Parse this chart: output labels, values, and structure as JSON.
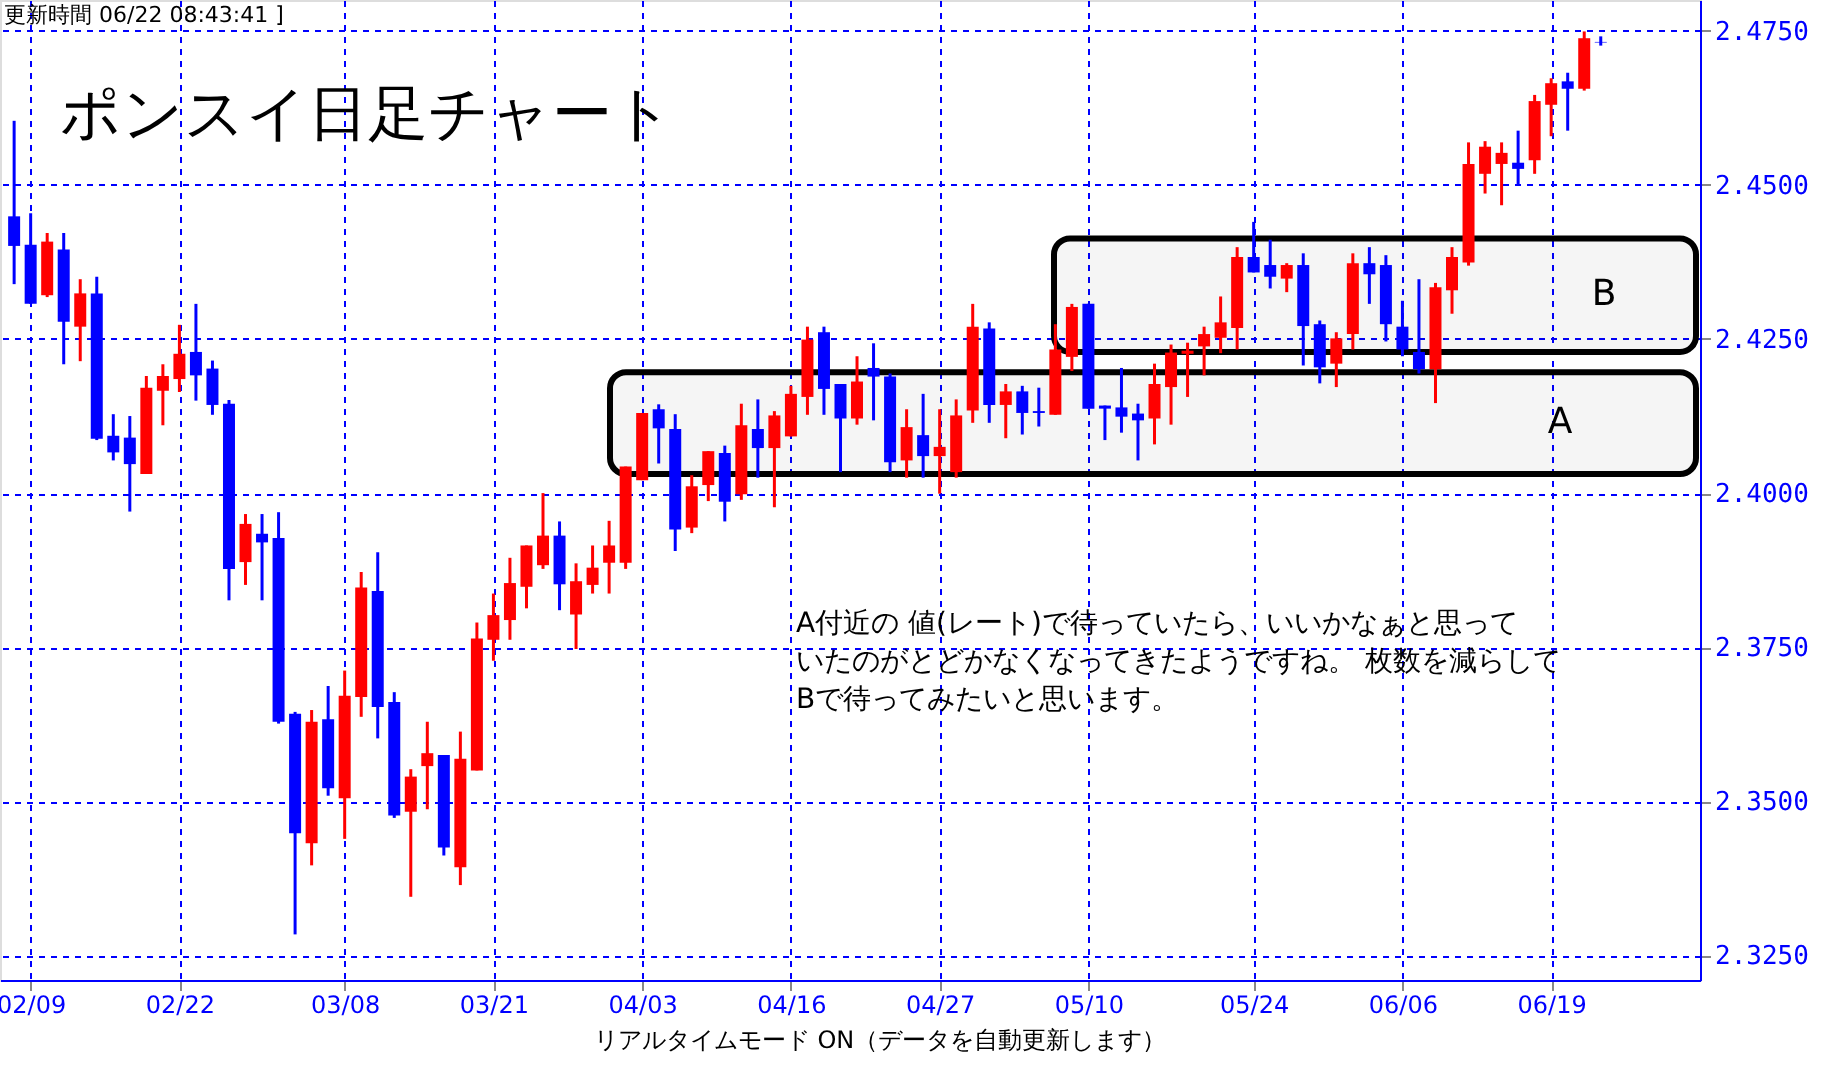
{
  "chart_data": {
    "type": "candlestick",
    "title": "ポンスイ日足チャート",
    "annotations": [
      "更新時間 06/22 08:43:41 ]",
      "A付近の 値(レート)で待っていたら、いいかなぁと思っていたのがとどかなくなってきたようですね。 枚数を減らしてBで待ってみたいと思います。",
      "リアルタイムモード ON（データを自動更新します）"
    ],
    "categories": [
      null,
      "02/09",
      null,
      null,
      null,
      null,
      null,
      null,
      null,
      null,
      "02/22",
      null,
      null,
      null,
      null,
      null,
      null,
      null,
      null,
      null,
      "03/08",
      null,
      null,
      null,
      null,
      null,
      null,
      null,
      null,
      "03/21",
      null,
      null,
      null,
      null,
      null,
      null,
      null,
      null,
      "04/03",
      null,
      null,
      null,
      null,
      null,
      null,
      null,
      null,
      "04/16",
      null,
      null,
      null,
      null,
      null,
      null,
      null,
      null,
      "04/27",
      null,
      null,
      null,
      null,
      null,
      null,
      null,
      null,
      "05/10",
      null,
      null,
      null,
      null,
      null,
      null,
      null,
      null,
      null,
      "05/24",
      null,
      null,
      null,
      null,
      null,
      null,
      null,
      null,
      "06/06",
      null,
      null,
      null,
      null,
      null,
      null,
      null,
      null,
      "06/19",
      null,
      null,
      null
    ],
    "ohlc": [
      [
        2.4449,
        2.4604,
        2.4339,
        2.4401
      ],
      [
        2.4403,
        2.4454,
        2.4307,
        2.4307
      ],
      [
        2.4321,
        2.4422,
        2.4318,
        2.4408
      ],
      [
        2.4395,
        2.4422,
        2.4209,
        2.4278
      ],
      [
        2.427,
        2.4347,
        2.4214,
        2.4324
      ],
      [
        2.4324,
        2.4351,
        2.4086,
        2.4088
      ],
      [
        2.4093,
        2.4128,
        2.4053,
        2.4066
      ],
      [
        2.409,
        2.4125,
        2.397,
        2.4047
      ],
      [
        2.4031,
        2.419,
        2.4031,
        2.4171
      ],
      [
        2.4166,
        2.4209,
        2.411,
        2.419
      ],
      [
        2.4185,
        2.4273,
        2.4164,
        2.4226
      ],
      [
        2.4229,
        2.4307,
        2.415,
        2.4191
      ],
      [
        2.4202,
        2.4215,
        2.4127,
        2.4143
      ],
      [
        2.4145,
        2.4151,
        2.3826,
        2.3877
      ],
      [
        2.3888,
        2.3966,
        2.3851,
        2.395
      ],
      [
        2.3934,
        2.3966,
        2.3826,
        2.392
      ],
      [
        2.3927,
        2.3969,
        2.3626,
        2.3629
      ],
      [
        2.3642,
        2.3645,
        2.3284,
        2.3448
      ],
      [
        2.3432,
        2.3648,
        2.3396,
        2.3629
      ],
      [
        2.3633,
        2.3687,
        2.3509,
        2.3521
      ],
      [
        2.3505,
        2.3712,
        2.3439,
        2.3671
      ],
      [
        2.3669,
        2.3872,
        2.3637,
        2.3847
      ],
      [
        2.3841,
        2.3904,
        2.3602,
        2.3653
      ],
      [
        2.3661,
        2.3677,
        2.3473,
        2.3477
      ],
      [
        2.3483,
        2.3552,
        2.3345,
        2.354
      ],
      [
        2.3557,
        2.3629,
        2.3487,
        2.3578
      ],
      [
        2.3575,
        2.3575,
        2.3412,
        2.3425
      ],
      [
        2.3393,
        2.3613,
        2.3364,
        2.3569
      ],
      [
        2.355,
        2.379,
        2.355,
        2.3764
      ],
      [
        2.3762,
        2.3837,
        2.3728,
        2.3802
      ],
      [
        2.3794,
        2.3895,
        2.3762,
        2.3854
      ],
      [
        2.3848,
        2.3915,
        2.3813,
        2.3915
      ],
      [
        2.3883,
        2.4,
        2.3877,
        2.3931
      ],
      [
        2.3931,
        2.3954,
        2.381,
        2.3852
      ],
      [
        2.3803,
        2.3886,
        2.3747,
        2.3857
      ],
      [
        2.3851,
        2.3915,
        2.3837,
        2.3879
      ],
      [
        2.3887,
        2.3955,
        2.3837,
        2.3915
      ],
      [
        2.3887,
        2.4043,
        2.3877,
        2.4043
      ],
      [
        2.4021,
        2.413,
        2.4021,
        2.413
      ],
      [
        2.4136,
        2.4144,
        2.4048,
        2.4105
      ],
      [
        2.4104,
        2.4128,
        2.3906,
        2.3941
      ],
      [
        2.3944,
        2.4029,
        2.3935,
        2.4011
      ],
      [
        2.4013,
        2.4068,
        2.3987,
        2.4068
      ],
      [
        2.4065,
        2.4077,
        2.3954,
        2.3986
      ],
      [
        2.3998,
        2.4145,
        2.3989,
        2.411
      ],
      [
        2.4104,
        2.4152,
        2.4025,
        2.4073
      ],
      [
        2.4073,
        2.4133,
        2.3977,
        2.4126
      ],
      [
        2.4092,
        2.4174,
        2.4092,
        2.4161
      ],
      [
        2.4156,
        2.427,
        2.4127,
        2.4249
      ],
      [
        2.4261,
        2.427,
        2.4127,
        2.4169
      ],
      [
        2.4177,
        2.4177,
        2.4034,
        2.4121
      ],
      [
        2.4121,
        2.4222,
        2.4111,
        2.4181
      ],
      [
        2.4203,
        2.4243,
        2.4118,
        2.4189
      ],
      [
        2.4189,
        2.4194,
        2.4034,
        2.405
      ],
      [
        2.4053,
        2.4136,
        2.4025,
        2.4107
      ],
      [
        2.4094,
        2.4161,
        2.4025,
        2.406
      ],
      [
        2.406,
        2.4136,
        2.3999,
        2.4075
      ],
      [
        2.4034,
        2.4152,
        2.4025,
        2.4126
      ],
      [
        2.4134,
        2.4307,
        2.4114,
        2.427
      ],
      [
        2.4267,
        2.4277,
        2.4114,
        2.4143
      ],
      [
        2.4143,
        2.4177,
        2.4089,
        2.4165
      ],
      [
        2.4165,
        2.4174,
        2.4095,
        2.413
      ],
      [
        2.4133,
        2.4171,
        2.4108,
        2.413
      ],
      [
        2.4127,
        2.4274,
        2.4127,
        2.4233
      ],
      [
        2.4221,
        2.4307,
        2.4198,
        2.4302
      ],
      [
        2.4307,
        2.4307,
        2.4137,
        2.4137
      ],
      [
        2.4142,
        2.4142,
        2.4086,
        2.4137
      ],
      [
        2.4139,
        2.4203,
        2.4098,
        2.4124
      ],
      [
        2.4129,
        2.4145,
        2.4053,
        2.4118
      ],
      [
        2.4121,
        2.421,
        2.4079,
        2.4177
      ],
      [
        2.4172,
        2.4241,
        2.4111,
        2.4228
      ],
      [
        2.4226,
        2.4244,
        2.4156,
        2.4231
      ],
      [
        2.4238,
        2.427,
        2.4191,
        2.4258
      ],
      [
        2.4252,
        2.4319,
        2.4227,
        2.4277
      ],
      [
        2.4268,
        2.4399,
        2.4233,
        2.4383
      ],
      [
        2.4383,
        2.444,
        2.4358,
        2.4358
      ],
      [
        2.437,
        2.4411,
        2.4332,
        2.4351
      ],
      [
        2.4348,
        2.4373,
        2.4326,
        2.437
      ],
      [
        2.437,
        2.4389,
        2.4207,
        2.4271
      ],
      [
        2.4274,
        2.428,
        2.4178,
        2.4204
      ],
      [
        2.421,
        2.4261,
        2.4172,
        2.4251
      ],
      [
        2.4258,
        2.4389,
        2.4233,
        2.4373
      ],
      [
        2.4373,
        2.4399,
        2.4307,
        2.4355
      ],
      [
        2.437,
        2.4386,
        2.4246,
        2.4274
      ],
      [
        2.427,
        2.4312,
        2.4222,
        2.4233
      ],
      [
        2.4229,
        2.4347,
        2.4194,
        2.4201
      ],
      [
        2.4201,
        2.4341,
        2.4146,
        2.4334
      ],
      [
        2.4329,
        2.4399,
        2.4291,
        2.4383
      ],
      [
        2.4374,
        2.4569,
        2.4369,
        2.4534
      ],
      [
        2.4518,
        2.4571,
        2.4486,
        2.4562
      ],
      [
        2.4534,
        2.4569,
        2.4467,
        2.4552
      ],
      [
        2.4536,
        2.4588,
        2.4499,
        2.4526
      ],
      [
        2.454,
        2.4646,
        2.4518,
        2.4636
      ],
      [
        2.463,
        2.4673,
        2.4579,
        2.4665
      ],
      [
        2.4668,
        2.4682,
        2.4588,
        2.4656
      ],
      [
        2.4656,
        2.4749,
        2.4653,
        2.4738
      ],
      [
        2.4732,
        2.4741,
        2.4726,
        2.4731
      ]
    ],
    "colors": [
      "#0000ff",
      "#0000ff",
      "#ff0000",
      "#0000ff",
      "#ff0000",
      "#0000ff",
      "#0000ff",
      "#0000ff",
      "#ff0000",
      "#ff0000",
      "#ff0000",
      "#0000ff",
      "#0000ff",
      "#0000ff",
      "#ff0000",
      "#0000ff",
      "#0000ff",
      "#0000ff",
      "#ff0000",
      "#0000ff",
      "#ff0000",
      "#ff0000",
      "#0000ff",
      "#0000ff",
      "#ff0000",
      "#ff0000",
      "#0000ff",
      "#ff0000",
      "#ff0000",
      "#ff0000",
      "#ff0000",
      "#ff0000",
      "#ff0000",
      "#0000ff",
      "#ff0000",
      "#ff0000",
      "#ff0000",
      "#ff0000",
      "#ff0000",
      "#0000ff",
      "#0000ff",
      "#ff0000",
      "#ff0000",
      "#0000ff",
      "#ff0000",
      "#0000ff",
      "#ff0000",
      "#ff0000",
      "#ff0000",
      "#0000ff",
      "#0000ff",
      "#ff0000",
      "#0000ff",
      "#0000ff",
      "#ff0000",
      "#0000ff",
      "#ff0000",
      "#ff0000",
      "#ff0000",
      "#0000ff",
      "#ff0000",
      "#0000ff",
      "#0000ff",
      "#ff0000",
      "#ff0000",
      "#0000ff",
      "#0000ff",
      "#0000ff",
      "#0000ff",
      "#ff0000",
      "#ff0000",
      "#ff0000",
      "#ff0000",
      "#ff0000",
      "#ff0000",
      "#0000ff",
      "#0000ff",
      "#ff0000",
      "#0000ff",
      "#0000ff",
      "#ff0000",
      "#ff0000",
      "#0000ff",
      "#0000ff",
      "#0000ff",
      "#0000ff",
      "#ff0000",
      "#ff0000",
      "#ff0000",
      "#ff0000",
      "#ff0000",
      "#0000ff",
      "#ff0000",
      "#ff0000",
      "#0000ff",
      "#ff0000",
      "#0000ff"
    ],
    "ylim": [
      2.321,
      2.48
    ],
    "yticks": [
      {
        "value": 2.325,
        "label": "2.3250"
      },
      {
        "value": 2.35,
        "label": "2.3500"
      },
      {
        "value": 2.375,
        "label": "2.3750"
      },
      {
        "value": 2.4,
        "label": "2.4000"
      },
      {
        "value": 2.425,
        "label": "2.4250"
      },
      {
        "value": 2.45,
        "label": "2.4500"
      },
      {
        "value": 2.475,
        "label": "2.4750"
      }
    ],
    "bands": [
      {
        "axis": "y",
        "from": 2.4031,
        "to": 2.4196,
        "label": "A"
      },
      {
        "axis": "y",
        "from": 2.4229,
        "to": 2.4413,
        "label": "B"
      }
    ],
    "grid": true
  }
}
